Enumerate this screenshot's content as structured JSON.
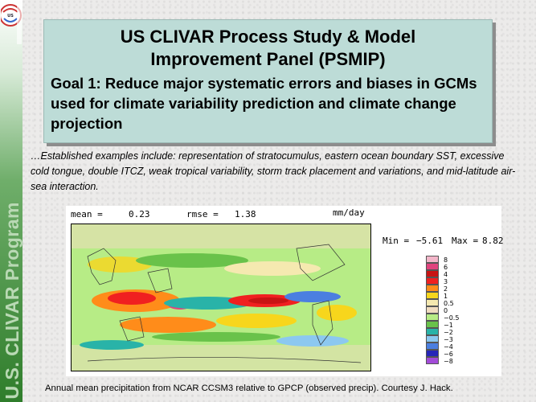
{
  "sidebar": {
    "logo_text": "US CLIVAR",
    "vertical_label": "U.S. CLIVAR Program"
  },
  "header": {
    "title_line1": "US CLIVAR Process Study & Model",
    "title_line2": "Improvement Panel (PSMIP)",
    "goal": "Goal 1: Reduce major systematic errors and biases in GCMs used for climate variability prediction and climate change projection"
  },
  "examples_text": "…Established examples include: representation of stratocumulus, eastern ocean boundary SST, excessive cold tongue, double ITCZ, weak tropical variability, storm track placement and variations, and mid-latitude air-sea interaction.",
  "figure": {
    "mean_label": "mean =",
    "mean_value": "0.23",
    "rmse_label": "rmse =",
    "rmse_value": "1.38",
    "units": "mm/day",
    "min_label": "Min =",
    "min_value": "−5.61",
    "max_label": "Max =",
    "max_value": "8.82",
    "legend": [
      {
        "label": "8",
        "color": "#f3b6c9"
      },
      {
        "label": "6",
        "color": "#e0447e"
      },
      {
        "label": "4",
        "color": "#c81414"
      },
      {
        "label": "3",
        "color": "#f02020"
      },
      {
        "label": "2",
        "color": "#ff8c1a"
      },
      {
        "label": "1",
        "color": "#f7d61c"
      },
      {
        "label": "0.5",
        "color": "#f5e9b0"
      },
      {
        "label": "0",
        "color": "#f0dcc0"
      },
      {
        "label": "−0.5",
        "color": "#b7ec86"
      },
      {
        "label": "−1",
        "color": "#69c24a"
      },
      {
        "label": "−2",
        "color": "#29b3a8"
      },
      {
        "label": "−3",
        "color": "#8cc8f0"
      },
      {
        "label": "−4",
        "color": "#4b7fe0"
      },
      {
        "label": "−6",
        "color": "#2626b8"
      },
      {
        "label": "−8",
        "color": "#a24bd8"
      }
    ]
  },
  "caption": "Annual mean precipitation from NCAR CCSM3 relative to GPCP (observed precip). Courtesy J. Hack."
}
